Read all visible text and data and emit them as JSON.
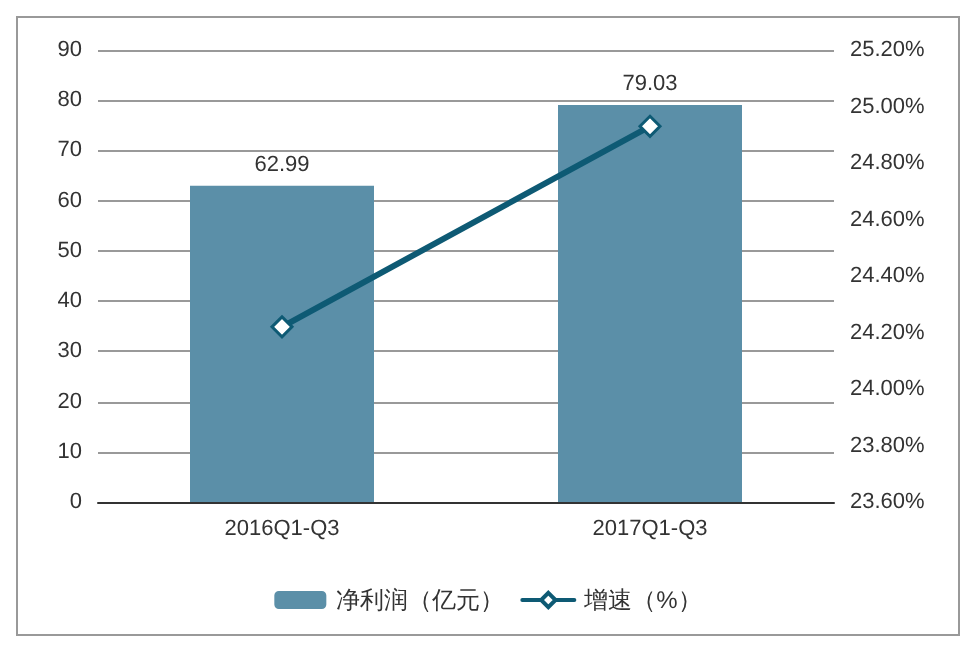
{
  "chart_data": {
    "type": "bar",
    "categories": [
      "2016Q1-Q3",
      "2017Q1-Q3"
    ],
    "series": [
      {
        "name": "净利润（亿元）",
        "color": "#5b8fa8",
        "values": [
          62.99,
          79.03
        ],
        "value_labels": [
          "62.99",
          "79.03"
        ]
      },
      {
        "name": "增速（%）",
        "type": "line",
        "axis": "y2",
        "color": "#0e5a74",
        "values": [
          24.22,
          24.93
        ],
        "marker": "diamond"
      }
    ],
    "ylim": [
      0,
      90
    ],
    "yticks": [
      0,
      10,
      20,
      30,
      40,
      50,
      60,
      70,
      80,
      90
    ],
    "y2lim": [
      23.6,
      25.2
    ],
    "y2ticks": [
      {
        "value": 23.6,
        "label": "23.60%"
      },
      {
        "value": 23.8,
        "label": "23.80%"
      },
      {
        "value": 24.0,
        "label": "24.00%"
      },
      {
        "value": 24.2,
        "label": "24.20%"
      },
      {
        "value": 24.4,
        "label": "24.40%"
      },
      {
        "value": 24.6,
        "label": "24.60%"
      },
      {
        "value": 24.8,
        "label": "24.80%"
      },
      {
        "value": 25.0,
        "label": "25.00%"
      },
      {
        "value": 25.2,
        "label": "25.20%"
      }
    ],
    "grid": "y",
    "legend": "bottom"
  }
}
